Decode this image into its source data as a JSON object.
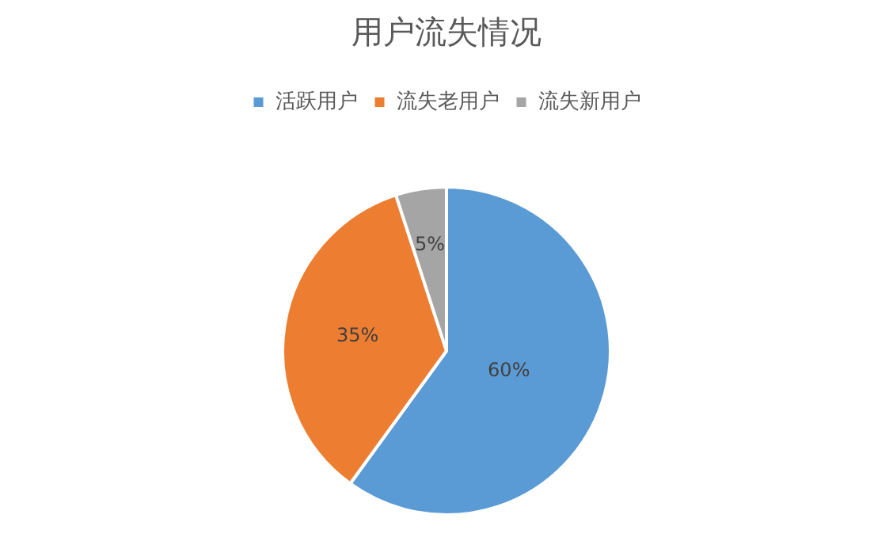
{
  "chart_data": {
    "type": "pie",
    "title": "用户流失情况",
    "categories": [
      "活跃用户",
      "流失老用户",
      "流失新用户"
    ],
    "values": [
      60,
      35,
      5
    ],
    "colors": [
      "#5b9bd5",
      "#ed7d31",
      "#a5a5a5"
    ],
    "value_labels": [
      "60%",
      "35%",
      "5%"
    ],
    "legend": "top"
  }
}
